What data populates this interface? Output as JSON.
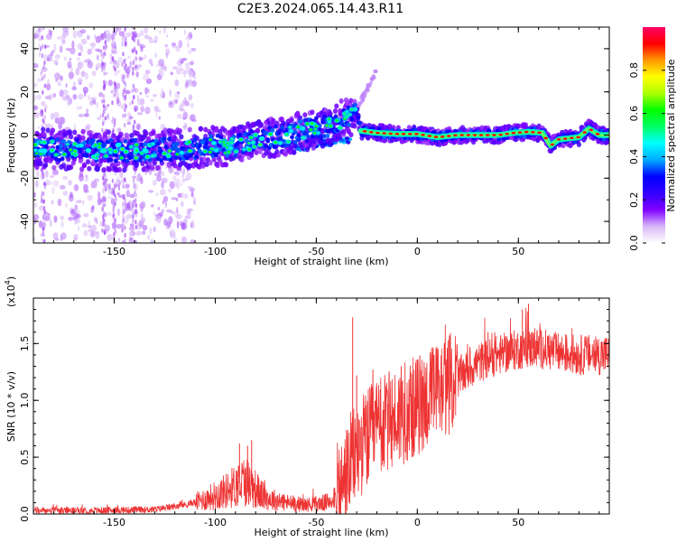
{
  "title": "C2E3.2024.065.14.43.R11",
  "colors": {
    "line": "#ee3333",
    "axis": "#000000",
    "colormap": [
      "#ffffff",
      "#d8b8f8",
      "#8000ff",
      "#3300ff",
      "#0000ff",
      "#00aaff",
      "#00ffff",
      "#00ff66",
      "#00ff00",
      "#aaff00",
      "#ffff00",
      "#ff9900",
      "#ff0000",
      "#ff0066"
    ]
  },
  "chart_data": [
    {
      "type": "heatmap",
      "xlabel": "Height of straight line (km)",
      "ylabel": "Frequency (Hz)",
      "xlim": [
        -190,
        95
      ],
      "ylim": [
        -50,
        50
      ],
      "x_ticks": [
        -150,
        -100,
        -50,
        0,
        50
      ],
      "y_ticks": [
        -40,
        -20,
        0,
        20,
        40
      ],
      "colorbar": {
        "label": "Normalized spectral amplitude",
        "range": [
          0,
          1
        ],
        "ticks": [
          "0.0",
          "0.2",
          "0.4",
          "0.6",
          "0.8"
        ]
      },
      "ridge": {
        "description_points_x": [
          -190,
          -170,
          -150,
          -130,
          -110,
          -90,
          -70,
          -55,
          -45,
          -35,
          -30,
          -28,
          -20,
          -10,
          0,
          10,
          20,
          30,
          40,
          48,
          55,
          62,
          66,
          70,
          80,
          85,
          90,
          95
        ],
        "description_points_y": [
          -6,
          -7,
          -7.5,
          -7,
          -6,
          -4.5,
          -1,
          2,
          4,
          8,
          10,
          2,
          1,
          0.5,
          0.5,
          -1,
          0,
          0,
          0,
          1,
          1.5,
          1,
          -5,
          -2,
          -1,
          3,
          0,
          0
        ]
      }
    },
    {
      "type": "line",
      "xlabel": "Height of straight line (km)",
      "ylabel": "SNR (10 * v/v)",
      "y_multiplier": "(x10",
      "y_multiplier_exp": "4",
      "y_multiplier_close": ")",
      "xlim": [
        -190,
        95
      ],
      "ylim": [
        0,
        1.9
      ],
      "x_ticks": [
        -150,
        -100,
        -50,
        0,
        50
      ],
      "y_ticks": [
        "0.0",
        "0.5",
        "1.0",
        "1.5"
      ],
      "trend_x": [
        -190,
        -160,
        -130,
        -115,
        -105,
        -95,
        -85,
        -75,
        -65,
        -55,
        -45,
        -38,
        -33,
        -28,
        -20,
        -10,
        0,
        10,
        20,
        30,
        40,
        50,
        60,
        70,
        80,
        95
      ],
      "trend_y": [
        0.03,
        0.03,
        0.04,
        0.08,
        0.13,
        0.2,
        0.3,
        0.14,
        0.1,
        0.08,
        0.1,
        0.2,
        0.45,
        0.6,
        0.75,
        0.85,
        0.95,
        1.08,
        1.2,
        1.33,
        1.4,
        1.45,
        1.46,
        1.42,
        1.4,
        1.4
      ],
      "spikes": [
        {
          "x": -88,
          "y": 0.62
        },
        {
          "x": -84,
          "y": 0.6
        },
        {
          "x": -82,
          "y": 0.65
        },
        {
          "x": -32,
          "y": 1.73
        },
        {
          "x": -30,
          "y": 1.22
        },
        {
          "x": -22,
          "y": 1.27
        },
        {
          "x": -8,
          "y": 1.3
        },
        {
          "x": 15,
          "y": 1.3
        },
        {
          "x": 35,
          "y": 1.6
        },
        {
          "x": 52,
          "y": 1.8
        },
        {
          "x": 55,
          "y": 1.85
        },
        {
          "x": 57,
          "y": 1.6
        },
        {
          "x": 65,
          "y": 1.55
        }
      ]
    }
  ]
}
